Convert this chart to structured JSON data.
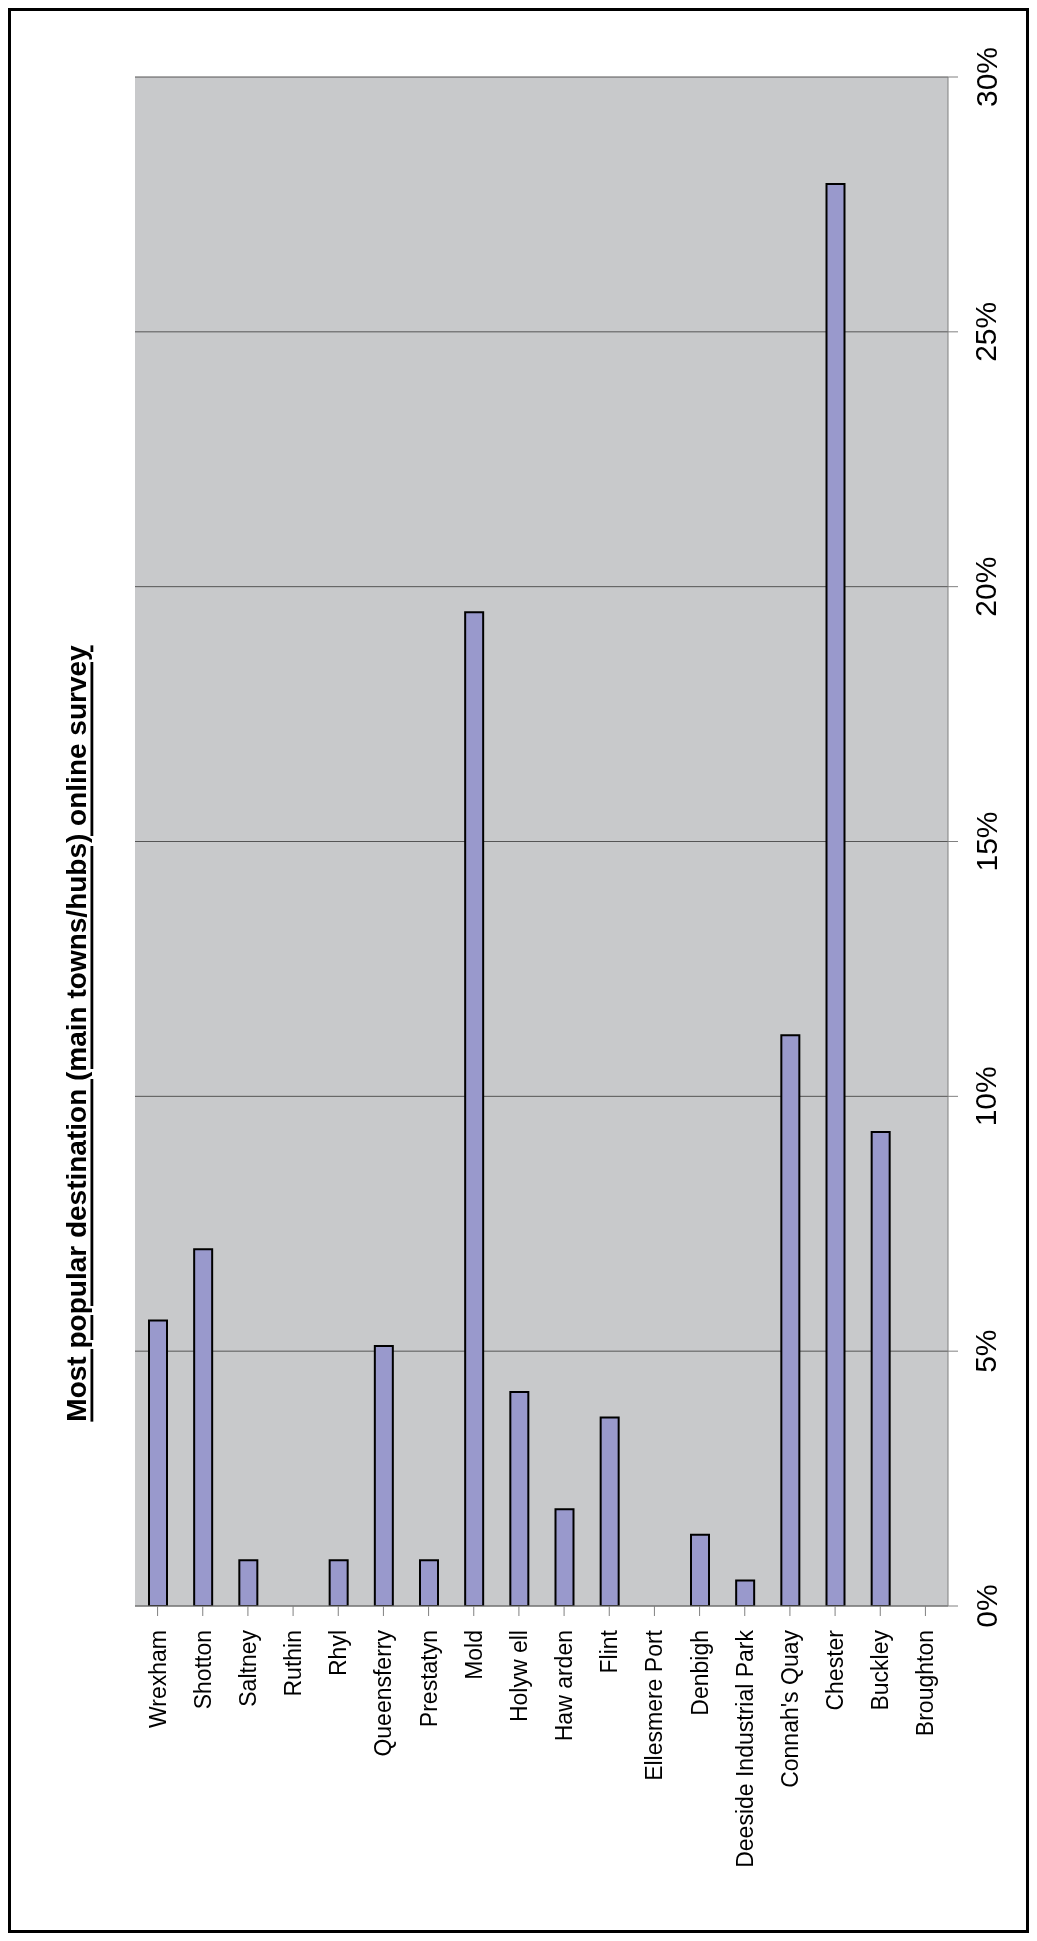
{
  "chart_data": {
    "type": "bar",
    "title": "Most popular destination (main towns/hubs) online survey",
    "categories": [
      "Wrexham",
      "Shotton",
      "Saltney",
      "Ruthin",
      "Rhyl",
      "Queensferry",
      "Prestatyn",
      "Mold",
      "Holyw ell",
      "Haw arden",
      "Flint",
      "Ellesmere Port",
      "Denbigh",
      "Deeside Industrial Park",
      "Connah's Quay",
      "Chester",
      "Buckley",
      "Broughton"
    ],
    "values": [
      5.6,
      7.0,
      0.9,
      0,
      0.9,
      5.1,
      0.9,
      19.5,
      4.2,
      1.9,
      3.7,
      0,
      1.4,
      0.5,
      11.2,
      27.9,
      9.3,
      0
    ],
    "color": "#9999cc",
    "ylim": [
      0,
      30
    ],
    "yticks": [
      {
        "value": 0,
        "label": "0%"
      },
      {
        "value": 5,
        "label": "5%"
      },
      {
        "value": 10,
        "label": "10%"
      },
      {
        "value": 15,
        "label": "15%"
      },
      {
        "value": 20,
        "label": "20%"
      },
      {
        "value": 25,
        "label": "25%"
      },
      {
        "value": 30,
        "label": "30%"
      }
    ],
    "grid": "y"
  }
}
